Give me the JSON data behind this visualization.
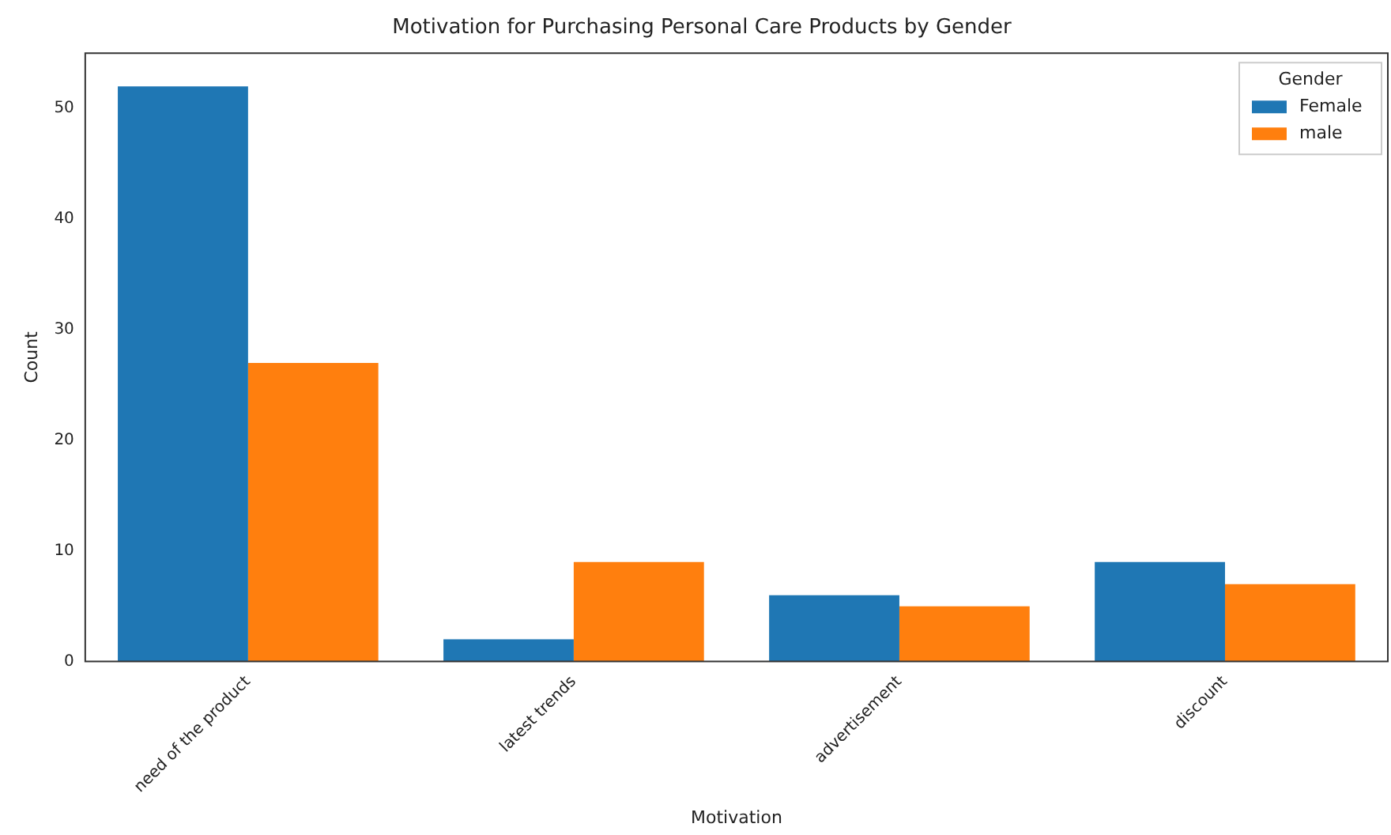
{
  "chart_data": {
    "type": "bar",
    "title": "Motivation for Purchasing Personal Care Products by Gender",
    "xlabel": "Motivation",
    "ylabel": "Count",
    "legend_title": "Gender",
    "legend": "top right",
    "grid": false,
    "categories": [
      "need of the product",
      "latest trends",
      "advertisement",
      "discount"
    ],
    "series": [
      {
        "name": "Female",
        "color": "#1f77b4",
        "values": [
          52,
          2,
          6,
          9
        ]
      },
      {
        "name": "male",
        "color": "#ff7f0e",
        "values": [
          27,
          9,
          5,
          7
        ]
      }
    ],
    "ylim": [
      0,
      55
    ],
    "yticks": [
      0,
      10,
      20,
      30,
      40,
      50
    ]
  }
}
